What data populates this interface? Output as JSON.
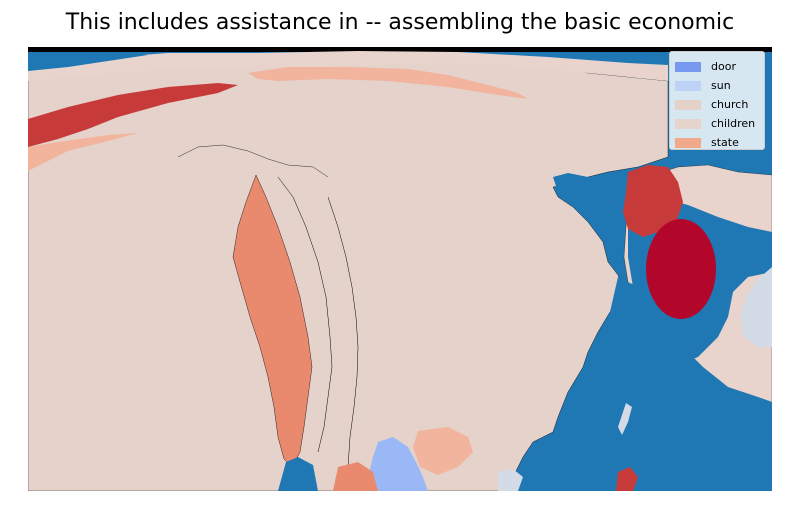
{
  "title": "This includes assistance in -- assembling the basic economic",
  "colors": {
    "water": "#1f78b4",
    "land_base": "#e4d2cb",
    "land_light": "#e8d4cc",
    "salmon": "#f2b49c",
    "coral": "#e98a6e",
    "red": "#c63a3a",
    "crimson": "#b2072a",
    "blue": "#9bb8f6",
    "pale_blue": "#d3dbe6",
    "outline": "#000000"
  },
  "legend": {
    "items": [
      {
        "label": "door",
        "color": "#7899f0"
      },
      {
        "label": "sun",
        "color": "#bdd2f6"
      },
      {
        "label": "church",
        "color": "#e6d1c9"
      },
      {
        "label": "children",
        "color": "#e6d3cc"
      },
      {
        "label": "state",
        "color": "#f2a98b"
      }
    ]
  }
}
